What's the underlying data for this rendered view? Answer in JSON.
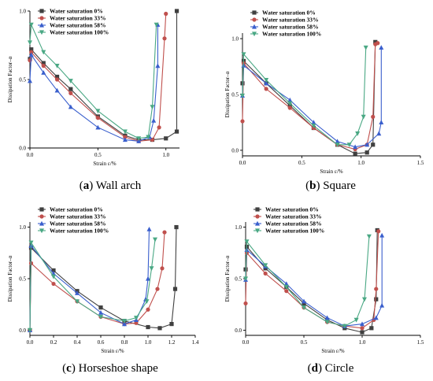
{
  "captions": [
    {
      "letter": "a",
      "text": "Wall arch"
    },
    {
      "letter": "b",
      "text": "Square"
    },
    {
      "letter": "c",
      "text": "Horseshoe shape"
    },
    {
      "letter": "d",
      "text": "Circle"
    }
  ],
  "colors": {
    "s0": "#404040",
    "s33": "#c0504d",
    "s58": "#3a5fcd",
    "s100": "#4aa884"
  },
  "chart_data": [
    {
      "type": "line",
      "xlabel": "Strain ε/%",
      "ylabel": "Dissipation Factor–α",
      "xlim": [
        0,
        1.1
      ],
      "ylim": [
        0,
        1.0
      ],
      "xticks": [
        0.0,
        0.5,
        1.0
      ],
      "xtick_labels": [
        "0.0",
        "0.5",
        "1.0"
      ],
      "yticks": [
        0.0,
        0.5,
        1.0
      ],
      "ytick_labels": [
        "0.0",
        "0.5",
        "1.0"
      ],
      "legend": "top-left",
      "series": [
        {
          "name": "Water saturation 0%",
          "marker": "square",
          "x": [
            0,
            0.01,
            0.1,
            0.2,
            0.3,
            0.5,
            0.7,
            0.8,
            0.9,
            1.0,
            1.08,
            1.08
          ],
          "y": [
            0.65,
            0.72,
            0.62,
            0.52,
            0.43,
            0.23,
            0.09,
            0.06,
            0.06,
            0.07,
            0.12,
            1.0
          ]
        },
        {
          "name": "Water saturation 33%",
          "marker": "circle",
          "x": [
            0,
            0.01,
            0.1,
            0.2,
            0.3,
            0.5,
            0.7,
            0.8,
            0.9,
            0.95,
            0.99,
            1.0
          ],
          "y": [
            0.64,
            0.7,
            0.6,
            0.5,
            0.4,
            0.22,
            0.08,
            0.05,
            0.06,
            0.15,
            0.8,
            0.98
          ]
        },
        {
          "name": "Water saturation 58%",
          "marker": "triangle-up",
          "x": [
            0,
            0.01,
            0.1,
            0.2,
            0.3,
            0.5,
            0.7,
            0.8,
            0.88,
            0.91,
            0.94,
            0.94
          ],
          "y": [
            0.49,
            0.68,
            0.55,
            0.42,
            0.3,
            0.15,
            0.06,
            0.05,
            0.08,
            0.2,
            0.6,
            0.9
          ]
        },
        {
          "name": "Water saturation 100%",
          "marker": "triangle-down",
          "x": [
            0,
            0.01,
            0.1,
            0.2,
            0.3,
            0.5,
            0.7,
            0.8,
            0.87,
            0.9,
            0.93
          ],
          "y": [
            0.77,
            0.9,
            0.7,
            0.6,
            0.49,
            0.27,
            0.12,
            0.07,
            0.08,
            0.3,
            0.9
          ]
        }
      ]
    },
    {
      "type": "line",
      "xlabel": "Strain ε/%",
      "ylabel": "Dissipation Factor–α",
      "xlim": [
        0,
        1.5
      ],
      "ylim": [
        -0.05,
        1.05
      ],
      "xticks": [
        0.0,
        0.5,
        1.0,
        1.5
      ],
      "xtick_labels": [
        "0.0",
        "0.5",
        "1.0",
        "1.5"
      ],
      "yticks": [
        0.0,
        0.5,
        1.0
      ],
      "ytick_labels": [
        "0.0",
        "0.5",
        "1.0"
      ],
      "legend": "top-left",
      "series": [
        {
          "name": "Water saturation 0%",
          "marker": "square",
          "x": [
            0,
            0.01,
            0.2,
            0.4,
            0.6,
            0.8,
            0.95,
            1.05,
            1.1,
            1.12
          ],
          "y": [
            0.6,
            0.8,
            0.6,
            0.4,
            0.2,
            0.05,
            -0.03,
            -0.02,
            0.05,
            0.97
          ]
        },
        {
          "name": "Water saturation 33%",
          "marker": "circle",
          "x": [
            0,
            0.01,
            0.2,
            0.4,
            0.6,
            0.8,
            0.95,
            1.05,
            1.1,
            1.12,
            1.14
          ],
          "y": [
            0.26,
            0.78,
            0.55,
            0.38,
            0.2,
            0.05,
            0.01,
            0.05,
            0.3,
            0.95,
            0.96
          ]
        },
        {
          "name": "Water saturation 58%",
          "marker": "triangle-up",
          "x": [
            0,
            0.01,
            0.2,
            0.4,
            0.6,
            0.8,
            0.95,
            1.05,
            1.15,
            1.17,
            1.17
          ],
          "y": [
            0.49,
            0.76,
            0.6,
            0.45,
            0.25,
            0.08,
            0.03,
            0.05,
            0.15,
            0.25,
            0.92
          ]
        },
        {
          "name": "Water saturation 100%",
          "marker": "triangle-down",
          "x": [
            0,
            0.01,
            0.2,
            0.4,
            0.6,
            0.8,
            0.9,
            0.97,
            1.02,
            1.04
          ],
          "y": [
            0.49,
            0.86,
            0.63,
            0.42,
            0.22,
            0.05,
            0.05,
            0.15,
            0.3,
            0.92
          ]
        }
      ]
    },
    {
      "type": "line",
      "xlabel": "Strain ε/%",
      "ylabel": "Dissipation Factor–α",
      "xlim": [
        0,
        1.4
      ],
      "ylim": [
        -0.05,
        1.05
      ],
      "xticks": [
        0.0,
        0.2,
        0.4,
        0.6,
        0.8,
        1.0,
        1.2,
        1.4
      ],
      "xtick_labels": [
        "0.0",
        "0.2",
        "0.4",
        "0.6",
        "0.8",
        "1.0",
        "1.2",
        "1.4"
      ],
      "yticks": [
        0.0,
        0.5,
        1.0
      ],
      "ytick_labels": [
        "0.0",
        "0.5",
        "1.0"
      ],
      "legend": "top-left",
      "series": [
        {
          "name": "Water saturation 0%",
          "marker": "square",
          "x": [
            0,
            0.01,
            0.2,
            0.4,
            0.6,
            0.8,
            1.0,
            1.1,
            1.2,
            1.23,
            1.24
          ],
          "y": [
            0.0,
            0.8,
            0.58,
            0.38,
            0.22,
            0.09,
            0.03,
            0.02,
            0.06,
            0.4,
            1.0
          ]
        },
        {
          "name": "Water saturation 33%",
          "marker": "circle",
          "x": [
            0,
            0.01,
            0.2,
            0.4,
            0.6,
            0.8,
            0.9,
            1.0,
            1.08,
            1.12,
            1.14
          ],
          "y": [
            0.0,
            0.65,
            0.45,
            0.28,
            0.13,
            0.06,
            0.07,
            0.2,
            0.4,
            0.6,
            0.95
          ]
        },
        {
          "name": "Water saturation 58%",
          "marker": "triangle-up",
          "x": [
            0,
            0.01,
            0.2,
            0.4,
            0.6,
            0.8,
            0.9,
            0.98,
            1.0,
            1.01
          ],
          "y": [
            0.0,
            0.82,
            0.55,
            0.36,
            0.17,
            0.06,
            0.1,
            0.3,
            0.5,
            0.98
          ]
        },
        {
          "name": "Water saturation 100%",
          "marker": "triangle-down",
          "x": [
            0,
            0.01,
            0.2,
            0.4,
            0.6,
            0.8,
            0.9,
            0.99,
            1.03,
            1.06
          ],
          "y": [
            0.0,
            0.85,
            0.52,
            0.28,
            0.13,
            0.09,
            0.12,
            0.28,
            0.6,
            0.88
          ]
        }
      ]
    },
    {
      "type": "line",
      "xlabel": "Strain ε/%",
      "ylabel": "Dissipation Factor–α",
      "xlim": [
        0,
        1.5
      ],
      "ylim": [
        -0.05,
        1.05
      ],
      "xticks": [
        0.0,
        0.5,
        1.0,
        1.5
      ],
      "xtick_labels": [
        "0.0",
        "0.5",
        "1.0",
        "1.5"
      ],
      "yticks": [
        0.0,
        0.5,
        1.0
      ],
      "ytick_labels": [
        "0.0",
        "0.5",
        "1.0"
      ],
      "legend": "top-left",
      "series": [
        {
          "name": "Water saturation 0%",
          "marker": "square",
          "x": [
            0,
            0.01,
            0.17,
            0.35,
            0.5,
            0.7,
            0.85,
            1.0,
            1.08,
            1.12,
            1.13
          ],
          "y": [
            0.59,
            0.81,
            0.6,
            0.42,
            0.26,
            0.1,
            0.02,
            -0.02,
            0.02,
            0.3,
            0.97
          ]
        },
        {
          "name": "Water saturation 33%",
          "marker": "circle",
          "x": [
            0,
            0.01,
            0.17,
            0.35,
            0.5,
            0.7,
            0.85,
            1.0,
            1.1,
            1.12,
            1.14
          ],
          "y": [
            0.26,
            0.75,
            0.55,
            0.38,
            0.22,
            0.08,
            0.04,
            0.02,
            0.1,
            0.4,
            0.96
          ]
        },
        {
          "name": "Water saturation 58%",
          "marker": "triangle-up",
          "x": [
            0,
            0.01,
            0.17,
            0.35,
            0.5,
            0.7,
            0.85,
            1.0,
            1.12,
            1.17,
            1.17
          ],
          "y": [
            0.49,
            0.78,
            0.62,
            0.45,
            0.28,
            0.12,
            0.04,
            0.06,
            0.12,
            0.24,
            0.92
          ]
        },
        {
          "name": "Water saturation 100%",
          "marker": "triangle-down",
          "x": [
            0,
            0.01,
            0.17,
            0.35,
            0.5,
            0.7,
            0.85,
            0.95,
            1.02,
            1.06
          ],
          "y": [
            0.5,
            0.86,
            0.63,
            0.42,
            0.22,
            0.08,
            0.04,
            0.1,
            0.3,
            0.91
          ]
        }
      ]
    }
  ]
}
